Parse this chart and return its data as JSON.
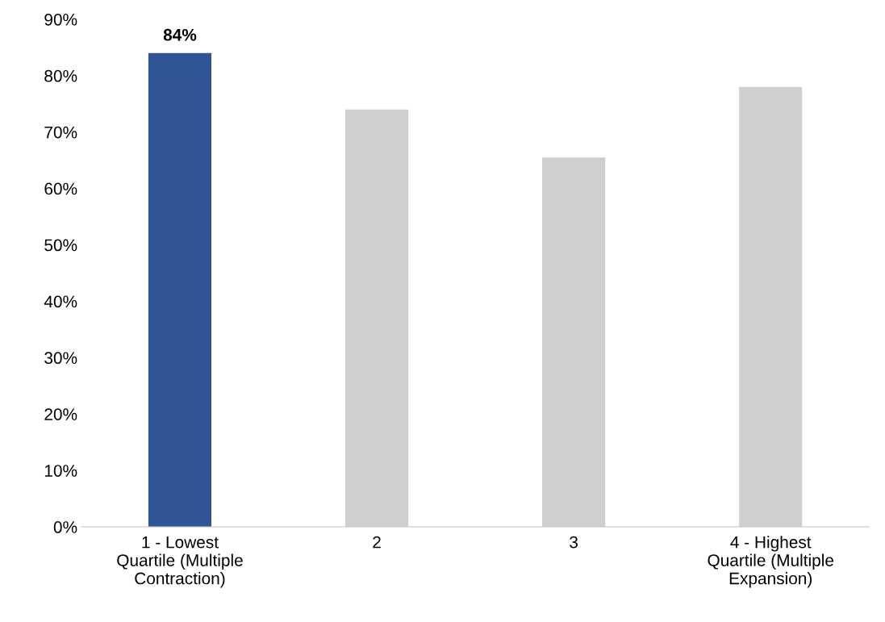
{
  "chart_data": {
    "type": "bar",
    "categories": [
      "1 - Lowest\nQuartile (Multiple\nContraction)",
      "2",
      "3",
      "4 - Highest\nQuartile (Multiple\nExpansion)"
    ],
    "values": [
      84,
      74,
      65.5,
      78
    ],
    "colors": [
      "#2f5597",
      "#d0cece",
      "#d0cece",
      "#d0cece"
    ],
    "value_labels": [
      "84%",
      null,
      null,
      null
    ],
    "ylim": [
      0,
      90
    ],
    "yticks": [
      {
        "value": 0,
        "label": "0%"
      },
      {
        "value": 10,
        "label": "10%"
      },
      {
        "value": 20,
        "label": "20%"
      },
      {
        "value": 30,
        "label": "30%"
      },
      {
        "value": 40,
        "label": "40%"
      },
      {
        "value": 50,
        "label": "50%"
      },
      {
        "value": 60,
        "label": "60%"
      },
      {
        "value": 70,
        "label": "70%"
      },
      {
        "value": 80,
        "label": "80%"
      },
      {
        "value": 90,
        "label": "90%"
      }
    ],
    "grid": false,
    "legend": false
  }
}
